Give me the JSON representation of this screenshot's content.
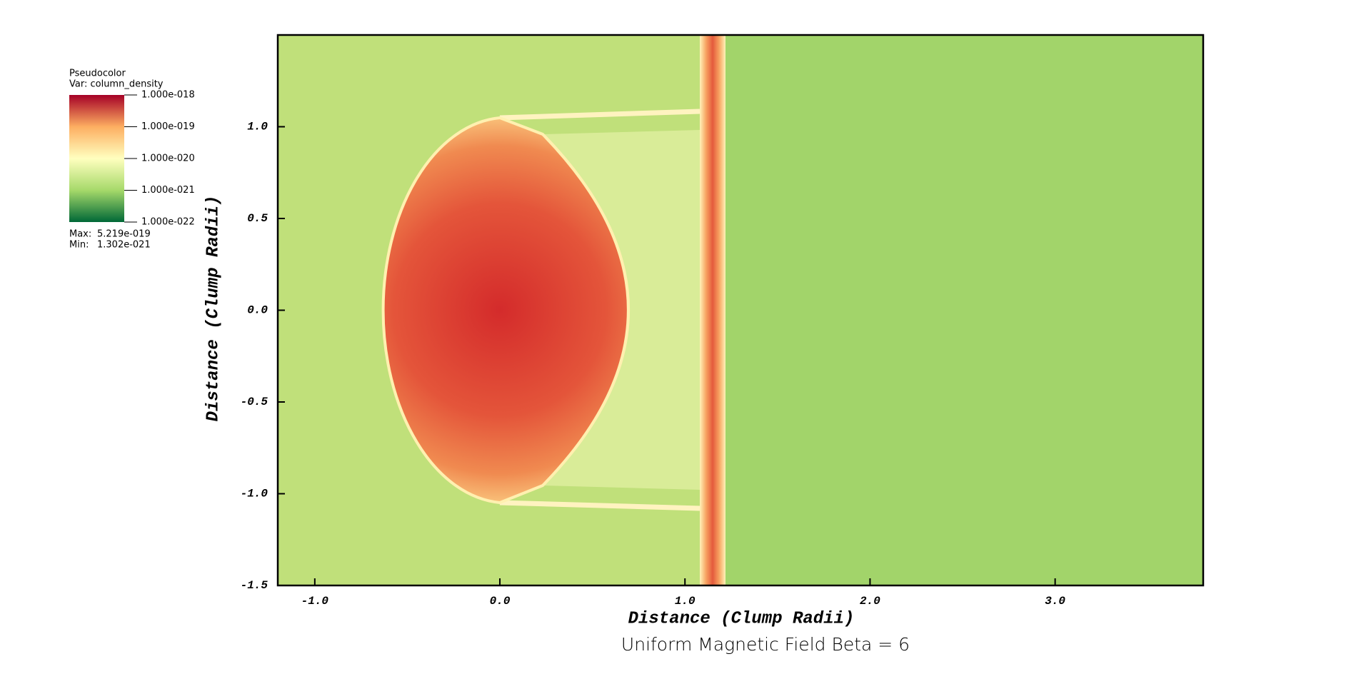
{
  "chart_data": {
    "type": "pseudocolor",
    "title": "Uniform Magnetic Field Beta = 6",
    "x_label": "Distance (Clump Radii)",
    "y_label": "Distance (Clump Radii)",
    "xlim": [
      -1.2,
      3.8
    ],
    "ylim": [
      -1.5,
      1.5
    ],
    "xticks": [
      {
        "value": -1,
        "label": "-1.0"
      },
      {
        "value": 0,
        "label": "0.0"
      },
      {
        "value": 1,
        "label": "1.0"
      },
      {
        "value": 2,
        "label": "2.0"
      },
      {
        "value": 3,
        "label": "3.0"
      }
    ],
    "yticks": [
      {
        "value": -1.5,
        "label": "-1.5"
      },
      {
        "value": -1,
        "label": "-1.0"
      },
      {
        "value": -0.5,
        "label": "-0.5"
      },
      {
        "value": 0,
        "label": "0.0"
      },
      {
        "value": 0.5,
        "label": "0.5"
      },
      {
        "value": 1,
        "label": "1.0"
      }
    ],
    "legend": {
      "title": "Pseudocolor",
      "variable": "Var: column_density",
      "log_scale": true,
      "colors": [
        "#006837",
        "#a6d96a",
        "#ffffbf",
        "#fdae61",
        "#a50026"
      ],
      "clim": [
        1e-22,
        1e-18
      ],
      "ticks": [
        {
          "value": 1e-18,
          "label": "1.000e-018"
        },
        {
          "value": 1e-19,
          "label": "1.000e-019"
        },
        {
          "value": 1e-20,
          "label": "1.000e-020"
        },
        {
          "value": 1e-21,
          "label": "1.000e-021"
        },
        {
          "value": 1e-22,
          "label": "1.000e-022"
        }
      ],
      "max_caption": "Max:",
      "max": 5.219e-19,
      "max_label": "5.219e-019",
      "min_caption": "Min:",
      "min": 1.302e-21,
      "min_label": "1.302e-021"
    }
  }
}
